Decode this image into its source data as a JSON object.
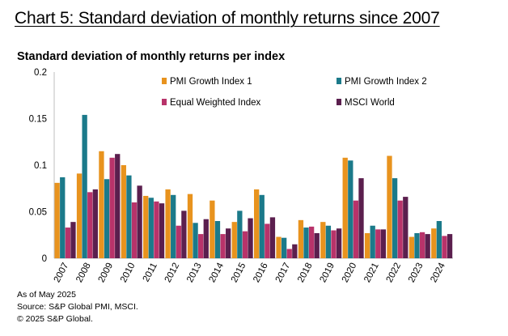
{
  "heading": "Chart 5: Standard deviation of monthly returns since 2007",
  "notes": {
    "as_of": "As of May 2025",
    "source": "Source: S&P Global PMI, MSCI.",
    "copyright": "© 2025 S&P Global."
  },
  "chart_data": {
    "type": "bar",
    "title": "Standard deviation of monthly returns per index",
    "xlabel": "",
    "ylabel": "",
    "ylim": [
      0,
      0.2
    ],
    "yticks": [
      "0",
      "0.05",
      "0.1",
      "0.15",
      "0.2"
    ],
    "grid": false,
    "legend_position": "top-right",
    "categories": [
      "2007",
      "2008",
      "2009",
      "2010",
      "2011",
      "2012",
      "2013",
      "2014",
      "2015",
      "2016",
      "2017",
      "2018",
      "2019",
      "2020",
      "2021",
      "2022",
      "2023",
      "2024"
    ],
    "series": [
      {
        "name": "PMI Growth Index 1",
        "color": "#E8931E",
        "values": [
          0.081,
          0.091,
          0.115,
          0.1,
          0.067,
          0.074,
          0.069,
          0.062,
          0.039,
          0.074,
          0.023,
          0.041,
          0.039,
          0.108,
          0.027,
          0.11,
          0.023,
          0.032
        ]
      },
      {
        "name": "PMI Growth Index 2",
        "color": "#1B7A8A",
        "values": [
          0.087,
          0.154,
          0.085,
          0.089,
          0.065,
          0.068,
          0.038,
          0.04,
          0.051,
          0.068,
          0.022,
          0.033,
          0.035,
          0.105,
          0.035,
          0.086,
          0.027,
          0.04
        ]
      },
      {
        "name": "Equal Weighted Index",
        "color": "#B8336A",
        "values": [
          0.033,
          0.071,
          0.108,
          0.06,
          0.061,
          0.035,
          0.026,
          0.026,
          0.029,
          0.037,
          0.01,
          0.034,
          0.03,
          0.062,
          0.031,
          0.062,
          0.028,
          0.024
        ]
      },
      {
        "name": "MSCI World",
        "color": "#5B1F4E",
        "values": [
          0.039,
          0.074,
          0.112,
          0.078,
          0.059,
          0.051,
          0.042,
          0.032,
          0.043,
          0.044,
          0.015,
          0.027,
          0.032,
          0.086,
          0.031,
          0.066,
          0.026,
          0.026
        ]
      }
    ]
  }
}
